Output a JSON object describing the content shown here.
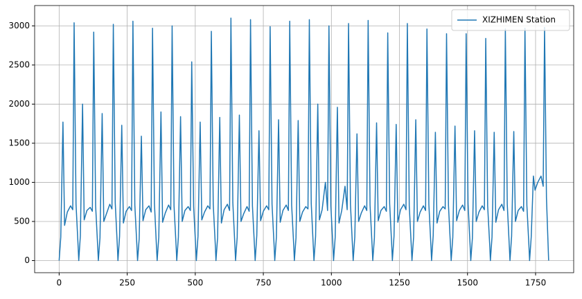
{
  "chart_data": {
    "type": "line",
    "legend": "upper right",
    "grid": true,
    "xlim": [
      -90,
      1890
    ],
    "ylim": [
      -155,
      3260
    ],
    "xticks": [
      0,
      250,
      500,
      750,
      1000,
      1250,
      1500,
      1750
    ],
    "yticks": [
      0,
      500,
      1000,
      1500,
      2000,
      2500,
      3000
    ],
    "x": [
      0,
      6,
      14,
      20,
      30,
      42,
      50,
      55,
      62,
      70,
      72,
      78,
      86,
      92,
      102,
      114,
      122,
      127,
      134,
      142,
      144,
      150,
      158,
      164,
      174,
      186,
      194,
      199,
      206,
      214,
      216,
      222,
      230,
      236,
      246,
      258,
      266,
      271,
      278,
      286,
      288,
      294,
      302,
      308,
      318,
      330,
      338,
      343,
      350,
      358,
      360,
      366,
      374,
      380,
      390,
      402,
      410,
      415,
      422,
      430,
      432,
      438,
      446,
      452,
      462,
      474,
      482,
      487,
      494,
      502,
      504,
      510,
      518,
      524,
      534,
      546,
      554,
      559,
      566,
      574,
      576,
      582,
      590,
      596,
      606,
      618,
      626,
      631,
      638,
      646,
      648,
      654,
      662,
      668,
      678,
      690,
      698,
      703,
      710,
      718,
      720,
      726,
      734,
      740,
      750,
      762,
      770,
      775,
      782,
      790,
      792,
      798,
      806,
      812,
      822,
      834,
      842,
      847,
      854,
      862,
      864,
      870,
      878,
      884,
      894,
      906,
      914,
      919,
      926,
      934,
      936,
      942,
      950,
      956,
      966,
      978,
      986,
      991,
      998,
      1006,
      1008,
      1014,
      1022,
      1028,
      1038,
      1050,
      1058,
      1063,
      1070,
      1078,
      1080,
      1086,
      1094,
      1100,
      1110,
      1122,
      1130,
      1135,
      1142,
      1150,
      1152,
      1158,
      1166,
      1172,
      1182,
      1194,
      1202,
      1207,
      1214,
      1222,
      1224,
      1230,
      1238,
      1244,
      1254,
      1266,
      1274,
      1279,
      1286,
      1294,
      1296,
      1302,
      1310,
      1316,
      1326,
      1338,
      1346,
      1351,
      1358,
      1366,
      1368,
      1374,
      1382,
      1388,
      1398,
      1410,
      1418,
      1423,
      1430,
      1438,
      1440,
      1446,
      1454,
      1460,
      1470,
      1482,
      1490,
      1495,
      1502,
      1510,
      1512,
      1518,
      1526,
      1532,
      1542,
      1554,
      1562,
      1567,
      1574,
      1582,
      1584,
      1590,
      1598,
      1604,
      1614,
      1626,
      1634,
      1639,
      1646,
      1654,
      1656,
      1662,
      1670,
      1676,
      1686,
      1698,
      1706,
      1711,
      1718,
      1726,
      1728,
      1734,
      1742,
      1748,
      1758,
      1770,
      1778,
      1783,
      1790,
      1798
    ],
    "series": [
      {
        "name": "XIZHIMEN Station",
        "color": "#1f77b4",
        "values": [
          0,
          300,
          1770,
          450,
          620,
          700,
          650,
          3040,
          720,
          160,
          0,
          320,
          2000,
          520,
          640,
          680,
          630,
          2920,
          700,
          150,
          0,
          290,
          1880,
          500,
          600,
          720,
          660,
          3020,
          740,
          170,
          0,
          310,
          1730,
          480,
          630,
          690,
          640,
          3060,
          710,
          160,
          0,
          280,
          1590,
          510,
          650,
          700,
          620,
          2970,
          730,
          140,
          0,
          300,
          1900,
          490,
          610,
          710,
          650,
          3000,
          700,
          160,
          0,
          300,
          1840,
          500,
          640,
          690,
          640,
          2540,
          690,
          150,
          0,
          310,
          1770,
          520,
          620,
          700,
          660,
          2930,
          720,
          170,
          0,
          290,
          1830,
          480,
          650,
          720,
          640,
          3100,
          740,
          160,
          0,
          300,
          1860,
          500,
          600,
          690,
          630,
          3080,
          700,
          150,
          0,
          320,
          1660,
          510,
          630,
          700,
          650,
          2990,
          720,
          160,
          0,
          300,
          1800,
          490,
          640,
          710,
          640,
          3060,
          710,
          170,
          0,
          290,
          1790,
          500,
          620,
          690,
          660,
          3080,
          730,
          150,
          0,
          310,
          2000,
          520,
          650,
          1000,
          640,
          3000,
          700,
          160,
          0,
          300,
          1960,
          480,
          640,
          950,
          650,
          3030,
          720,
          150,
          0,
          300,
          1620,
          500,
          610,
          700,
          640,
          3070,
          710,
          160,
          0,
          290,
          1760,
          510,
          640,
          690,
          630,
          2910,
          730,
          170,
          0,
          310,
          1740,
          490,
          650,
          720,
          650,
          3030,
          700,
          150,
          0,
          300,
          1800,
          500,
          620,
          700,
          640,
          2960,
          720,
          160,
          0,
          320,
          1640,
          480,
          630,
          690,
          660,
          2900,
          710,
          150,
          0,
          300,
          1720,
          510,
          640,
          710,
          640,
          2900,
          730,
          160,
          0,
          290,
          1660,
          500,
          620,
          700,
          650,
          2840,
          700,
          170,
          0,
          300,
          1640,
          490,
          650,
          720,
          640,
          2960,
          720,
          150,
          0,
          310,
          1650,
          500,
          640,
          690,
          630,
          2970,
          710,
          160,
          0,
          300,
          1080,
          900,
          1000,
          1080,
          950,
          2980,
          800,
          0
        ]
      }
    ]
  }
}
